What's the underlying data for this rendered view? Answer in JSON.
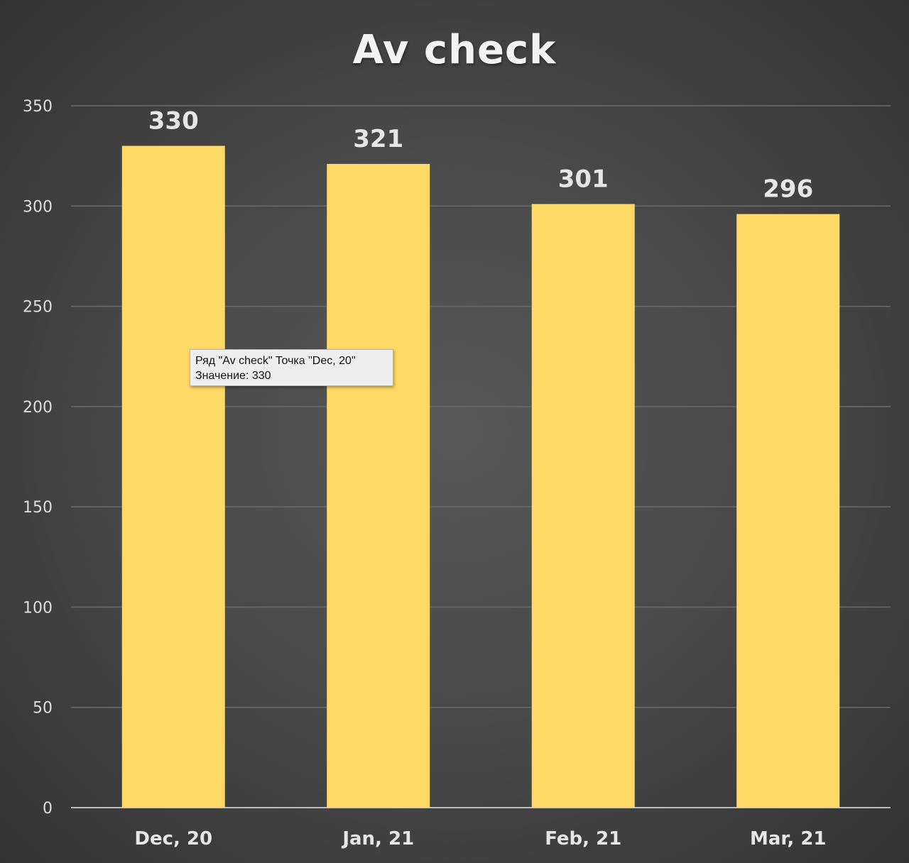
{
  "chart_data": {
    "type": "bar",
    "title": "Av check",
    "categories": [
      "Dec, 20",
      "Jan, 21",
      "Feb, 21",
      "Mar, 21"
    ],
    "series": [
      {
        "values": [
          330,
          321,
          301,
          296
        ]
      }
    ],
    "data_labels": [
      "330",
      "321",
      "301",
      "296"
    ],
    "ylim": [
      0,
      350
    ],
    "yticks": [
      0,
      50,
      100,
      150,
      200,
      250,
      300,
      350
    ],
    "grid": true,
    "legend": "none",
    "colors": {
      "bar": "#ffd966",
      "background": "#4a4a4a",
      "text": "#e0e0e0",
      "gridline": "#6a6a6a"
    }
  },
  "tooltip": {
    "line1": "Ряд \"Av check\" Точка \"Dec, 20\"",
    "line2": "Значение: 330"
  }
}
